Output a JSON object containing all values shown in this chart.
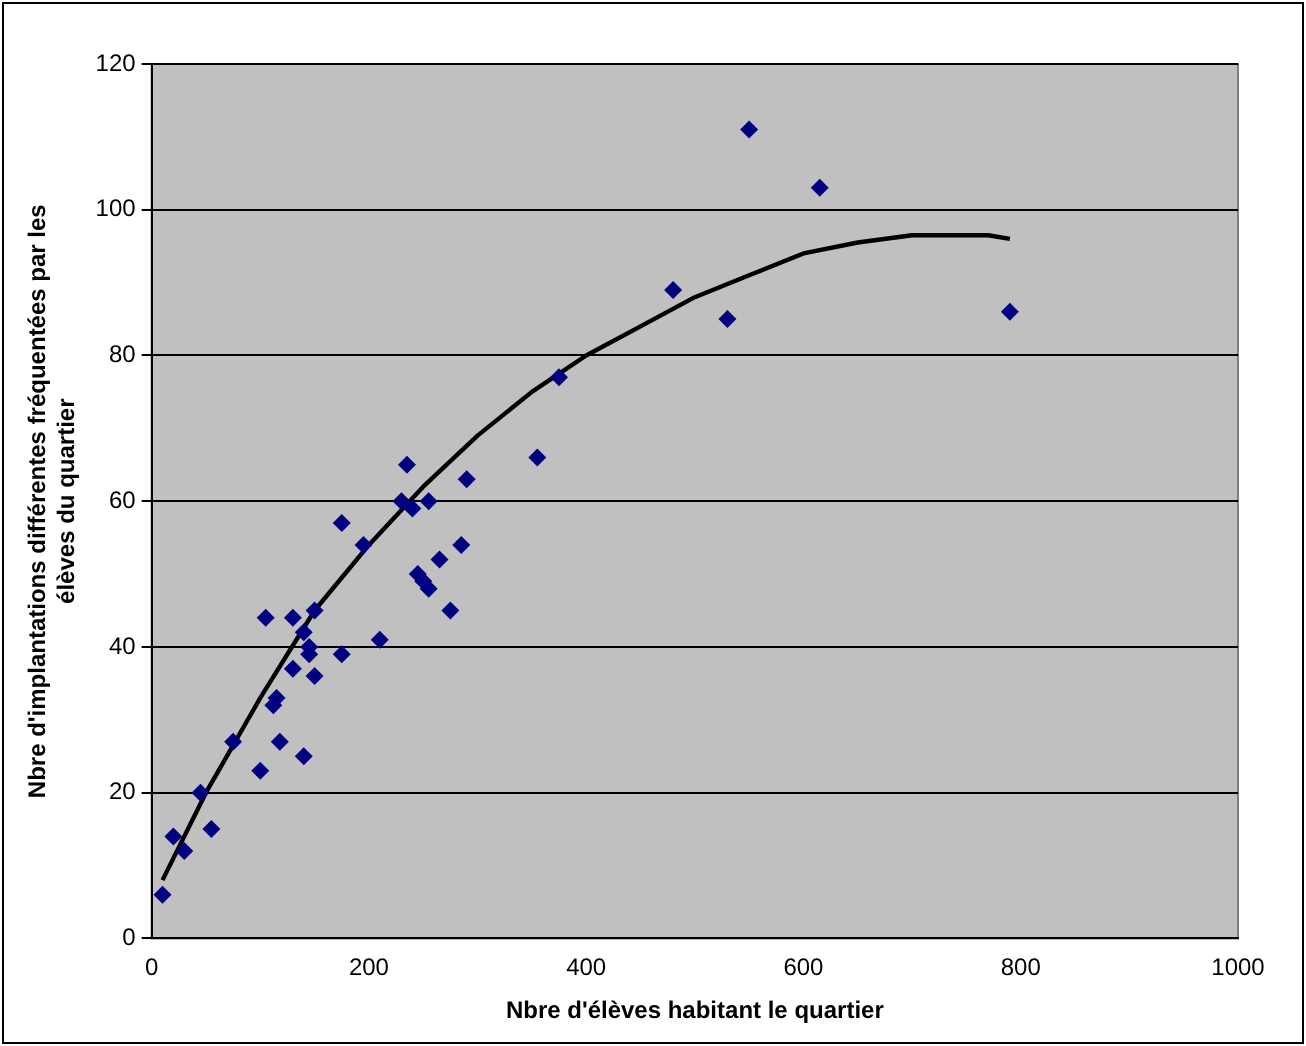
{
  "chart_data": {
    "type": "scatter",
    "xlabel": "Nbre d'élèves habitant le quartier",
    "ylabel": "Nbre d'implantations différentes fréquentées par les élèves du quartier",
    "xlim": [
      0,
      1000
    ],
    "xticks": [
      0,
      200,
      400,
      600,
      800,
      1000
    ],
    "ylim": [
      0,
      120
    ],
    "yticks": [
      0,
      20,
      40,
      60,
      80,
      100,
      120
    ],
    "grid": "y",
    "legend": false,
    "marker": "diamond",
    "series": [
      {
        "color": "#000080",
        "x": [
          10,
          20,
          30,
          45,
          55,
          75,
          100,
          105,
          112,
          115,
          118,
          130,
          130,
          140,
          140,
          145,
          145,
          150,
          150,
          175,
          175,
          195,
          210,
          230,
          235,
          240,
          245,
          250,
          255,
          255,
          265,
          275,
          285,
          290,
          355,
          375,
          480,
          530,
          550,
          615,
          790
        ],
        "values": [
          6,
          14,
          12,
          20,
          15,
          27,
          23,
          44,
          32,
          33,
          27,
          44,
          37,
          42,
          25,
          39,
          40,
          36,
          45,
          39,
          57,
          54,
          41,
          60,
          65,
          59,
          50,
          49,
          48,
          60,
          52,
          45,
          54,
          63,
          66,
          77,
          89,
          85,
          111,
          103,
          86
        ]
      },
      {
        "type": "line",
        "color": "#000000",
        "marker": "none",
        "line_style": "solid",
        "x": [
          10,
          50,
          100,
          150,
          200,
          250,
          300,
          350,
          400,
          450,
          500,
          550,
          600,
          650,
          700,
          770,
          790
        ],
        "values": [
          8,
          20,
          33,
          45,
          54,
          62,
          69,
          75,
          80,
          84,
          88,
          91,
          94,
          95.5,
          96.5,
          96.5,
          96
        ]
      }
    ]
  }
}
